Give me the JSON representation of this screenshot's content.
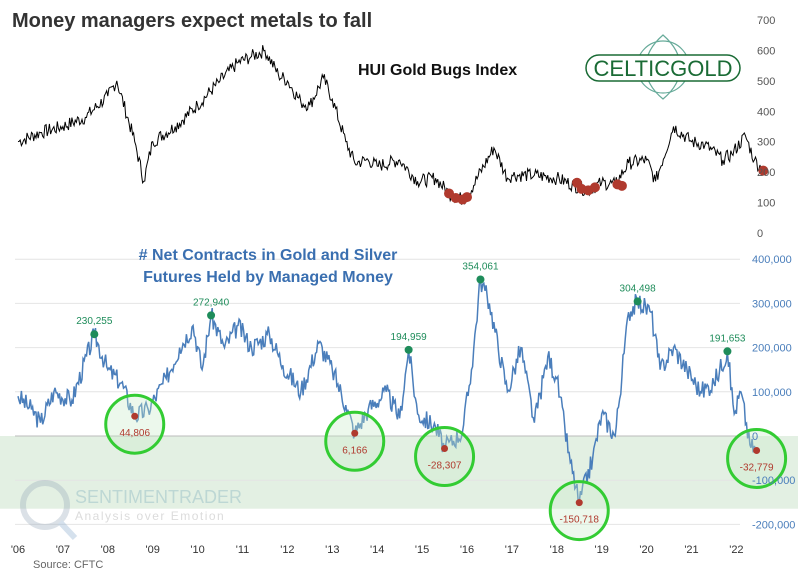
{
  "title": "Money managers expect metals to fall",
  "source": "Source: CFTC",
  "logo_text": "CELTICGOLD",
  "watermark": {
    "name": "SENTIMENTRADER",
    "tagline": "Analysis over Emotion"
  },
  "colors": {
    "hui": "#000000",
    "net": "#4a7ebb",
    "low_marker": "#b03a2e",
    "high_marker": "#1e8c5a",
    "circle": "#33cc33",
    "band": "#e3f0e3",
    "logo": "#1a6b35"
  },
  "chart_data": [
    {
      "type": "line",
      "title": "HUI Gold Bugs Index",
      "ylim": [
        0,
        700
      ],
      "yticks": [
        "700",
        "600",
        "500",
        "400",
        "300",
        "200",
        "100",
        "0"
      ],
      "ytick_values": [
        700,
        600,
        500,
        400,
        300,
        200,
        100,
        0
      ],
      "x": [
        2006,
        2006.5,
        2007,
        2007.5,
        2008,
        2008.2,
        2008.6,
        2008.8,
        2009,
        2009.5,
        2010,
        2010.5,
        2010.9,
        2011.2,
        2011.5,
        2011.8,
        2012,
        2012.3,
        2012.5,
        2012.8,
        2013,
        2013.3,
        2013.5,
        2013.8,
        2014,
        2014.5,
        2014.9,
        2015.3,
        2015.6,
        2015.9,
        2016,
        2016.6,
        2016.9,
        2017,
        2017.5,
        2018,
        2018.5,
        2018.7,
        2019,
        2019.3,
        2019.6,
        2020,
        2020.2,
        2020.6,
        2021,
        2021.3,
        2021.7,
        2021.9,
        2022.2,
        2022.4,
        2022.6
      ],
      "values": [
        300,
        330,
        350,
        380,
        450,
        500,
        300,
        170,
        300,
        350,
        420,
        500,
        560,
        580,
        600,
        520,
        500,
        430,
        420,
        510,
        440,
        300,
        230,
        240,
        220,
        240,
        170,
        180,
        130,
        110,
        120,
        280,
        180,
        190,
        190,
        180,
        150,
        140,
        165,
        160,
        230,
        240,
        170,
        350,
        300,
        290,
        240,
        260,
        320,
        240,
        205
      ],
      "low_markers_x": [
        2015.6,
        2015.75,
        2015.9,
        2016.0,
        2018.45,
        2018.55,
        2018.7,
        2018.85,
        2019.35,
        2019.45,
        2022.6
      ],
      "low_markers_y": [
        130,
        115,
        110,
        118,
        165,
        145,
        140,
        150,
        160,
        155,
        205
      ]
    },
    {
      "type": "line",
      "title": "# Net Contracts in Gold and Silver Futures Held by Managed Money",
      "title_lines": [
        "# Net Contracts in Gold and Silver",
        "Futures Held by Managed Money"
      ],
      "ylim": [
        -200000,
        400000
      ],
      "yticks": [
        "400,000",
        "300,000",
        "200,000",
        "100,000",
        "0",
        "-100,000",
        "-200,000"
      ],
      "ytick_values": [
        400000,
        300000,
        200000,
        100000,
        0,
        -100000,
        -200000
      ],
      "xticks": [
        "'06",
        "'07",
        "'08",
        "'09",
        "'10",
        "'11",
        "'12",
        "'13",
        "'14",
        "'15",
        "'16",
        "'17",
        "'18",
        "'19",
        "'20",
        "'21",
        "'22"
      ],
      "xtick_values": [
        2006,
        2007,
        2008,
        2009,
        2010,
        2011,
        2012,
        2013,
        2014,
        2015,
        2016,
        2017,
        2018,
        2019,
        2020,
        2021,
        2022
      ],
      "x": [
        2006,
        2006.3,
        2006.5,
        2006.8,
        2007.2,
        2007.7,
        2008,
        2008.3,
        2008.6,
        2008.9,
        2009.3,
        2009.6,
        2009.9,
        2010.1,
        2010.3,
        2010.6,
        2010.9,
        2011.2,
        2011.6,
        2011.9,
        2012.3,
        2012.7,
        2013,
        2013.3,
        2013.5,
        2013.8,
        2014.2,
        2014.5,
        2014.7,
        2014.9,
        2015.3,
        2015.5,
        2015.9,
        2016.1,
        2016.3,
        2016.5,
        2016.9,
        2017.2,
        2017.5,
        2017.8,
        2018,
        2018.3,
        2018.5,
        2018.8,
        2019,
        2019.3,
        2019.6,
        2019.8,
        2020.1,
        2020.3,
        2020.6,
        2020.9,
        2021.2,
        2021.5,
        2021.8,
        2021.95,
        2022.1,
        2022.3,
        2022.45
      ],
      "values": [
        90000,
        60000,
        30000,
        100000,
        80000,
        230255,
        150000,
        120000,
        44806,
        60000,
        130000,
        200000,
        250000,
        150000,
        272940,
        200000,
        250000,
        200000,
        230000,
        160000,
        100000,
        210000,
        150000,
        70000,
        6166,
        60000,
        100000,
        40000,
        194959,
        50000,
        20000,
        -28307,
        10000,
        150000,
        354061,
        300000,
        100000,
        200000,
        30000,
        180000,
        130000,
        -60000,
        -150718,
        -50000,
        50000,
        0,
        280000,
        304498,
        280000,
        150000,
        200000,
        150000,
        100000,
        120000,
        191653,
        50000,
        100000,
        -20000,
        -32779
      ],
      "highs": [
        {
          "x": 2007.7,
          "value": 230255,
          "label": "230,255"
        },
        {
          "x": 2010.3,
          "value": 272940,
          "label": "272,940"
        },
        {
          "x": 2014.7,
          "value": 194959,
          "label": "194,959"
        },
        {
          "x": 2016.3,
          "value": 354061,
          "label": "354,061"
        },
        {
          "x": 2019.8,
          "value": 304498,
          "label": "304,498"
        },
        {
          "x": 2021.8,
          "value": 191653,
          "label": "191,653"
        }
      ],
      "lows": [
        {
          "x": 2008.6,
          "value": 44806,
          "label": "44,806"
        },
        {
          "x": 2013.5,
          "value": 6166,
          "label": "6,166"
        },
        {
          "x": 2015.5,
          "value": -28307,
          "label": "-28,307"
        },
        {
          "x": 2018.5,
          "value": -150718,
          "label": "-150,718"
        },
        {
          "x": 2022.45,
          "value": -32779,
          "label": "-32,779"
        }
      ],
      "shaded_region": [
        -160000,
        0
      ]
    }
  ]
}
